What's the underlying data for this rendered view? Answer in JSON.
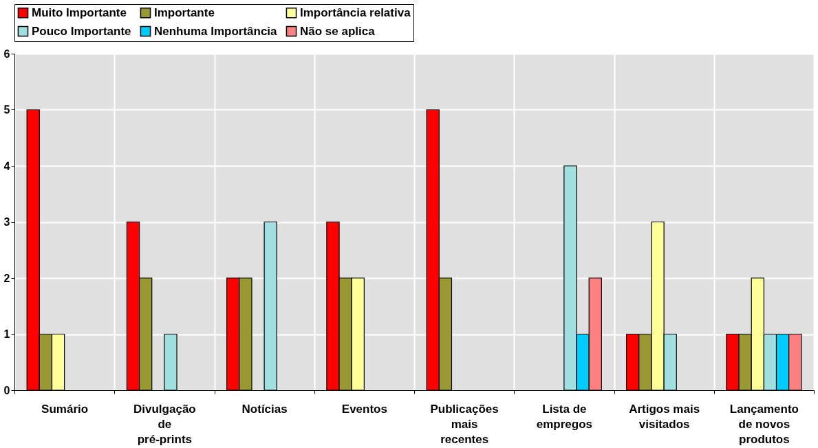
{
  "chart_data": {
    "type": "bar",
    "categories": [
      "Sumário",
      "Divulgação de pré-prints",
      "Notícias",
      "Eventos",
      "Publicações mais recentes",
      "Lista de empregos",
      "Artigos mais visitados",
      "Lançamento de novos produtos"
    ],
    "series": [
      {
        "name": "Muito Importante",
        "color": "#ff0000",
        "values": [
          5,
          3,
          2,
          3,
          5,
          0,
          1,
          1
        ]
      },
      {
        "name": "Importante",
        "color": "#999933",
        "values": [
          1,
          2,
          2,
          2,
          2,
          0,
          1,
          1
        ]
      },
      {
        "name": "Importância relativa",
        "color": "#ffff99",
        "values": [
          1,
          0,
          0,
          2,
          0,
          0,
          3,
          2
        ]
      },
      {
        "name": "Pouco Importante",
        "color": "#a0e0e0",
        "values": [
          0,
          1,
          3,
          0,
          0,
          4,
          1,
          1
        ]
      },
      {
        "name": "Nenhuma Importância",
        "color": "#00ccff",
        "values": [
          0,
          0,
          0,
          0,
          0,
          1,
          0,
          1
        ]
      },
      {
        "name": "Não se aplica",
        "color": "#ff8080",
        "values": [
          0,
          0,
          0,
          0,
          0,
          2,
          0,
          1
        ]
      }
    ],
    "ylim": [
      0,
      6
    ],
    "yticks": [
      0,
      1,
      2,
      3,
      4,
      5,
      6
    ],
    "grid": true,
    "legend": "top"
  }
}
